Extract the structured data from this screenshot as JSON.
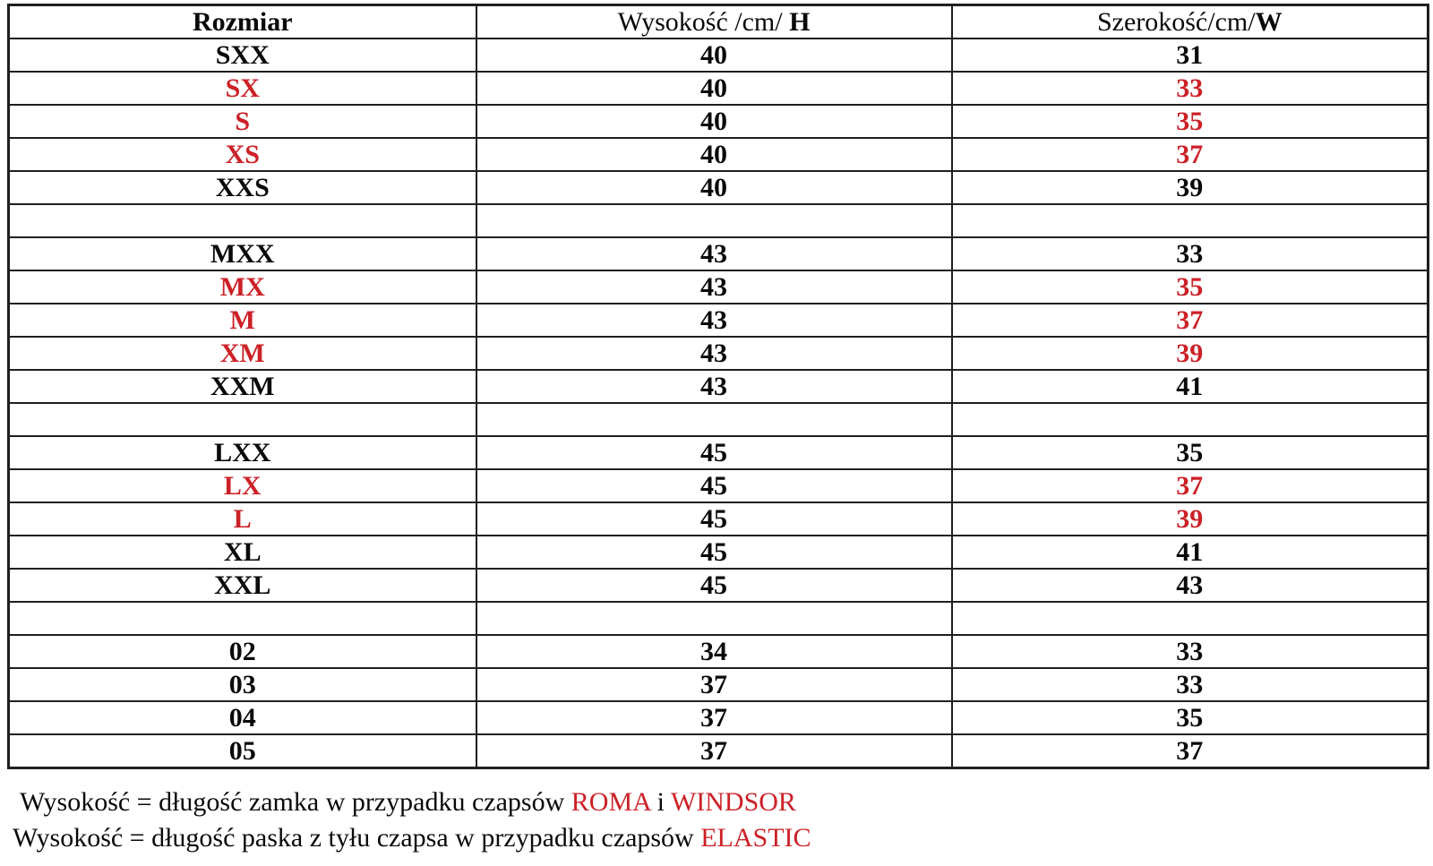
{
  "colors": {
    "accent_red": "#cc2127",
    "text": "#0a0a0a",
    "border": "#1f1f1f"
  },
  "table": {
    "columns": [
      {
        "regular": "",
        "bold": "Rozmiar"
      },
      {
        "regular": "Wysokość /cm/ ",
        "bold": "H"
      },
      {
        "regular": "Szerokość/cm/",
        "bold": "W"
      }
    ],
    "rows": [
      {
        "size": "SXX",
        "height": "40",
        "width": "31",
        "red": false,
        "spacer": false
      },
      {
        "size": "SX",
        "height": "40",
        "width": "33",
        "red": true,
        "spacer": false
      },
      {
        "size": "S",
        "height": "40",
        "width": "35",
        "red": true,
        "spacer": false
      },
      {
        "size": "XS",
        "height": "40",
        "width": "37",
        "red": true,
        "spacer": false
      },
      {
        "size": "XXS",
        "height": "40",
        "width": "39",
        "red": false,
        "spacer": false
      },
      {
        "size": "",
        "height": "",
        "width": "",
        "red": false,
        "spacer": true
      },
      {
        "size": "MXX",
        "height": "43",
        "width": "33",
        "red": false,
        "spacer": false
      },
      {
        "size": "MX",
        "height": "43",
        "width": "35",
        "red": true,
        "spacer": false
      },
      {
        "size": "M",
        "height": "43",
        "width": "37",
        "red": true,
        "spacer": false
      },
      {
        "size": "XM",
        "height": "43",
        "width": "39",
        "red": true,
        "spacer": false
      },
      {
        "size": "XXM",
        "height": "43",
        "width": "41",
        "red": false,
        "spacer": false
      },
      {
        "size": "",
        "height": "",
        "width": "",
        "red": false,
        "spacer": true
      },
      {
        "size": "LXX",
        "height": "45",
        "width": "35",
        "red": false,
        "spacer": false
      },
      {
        "size": "LX",
        "height": "45",
        "width": "37",
        "red": true,
        "spacer": false
      },
      {
        "size": "L",
        "height": "45",
        "width": "39",
        "red": true,
        "spacer": false
      },
      {
        "size": "XL",
        "height": "45",
        "width": "41",
        "red": false,
        "spacer": false
      },
      {
        "size": "XXL",
        "height": "45",
        "width": "43",
        "red": false,
        "spacer": false
      },
      {
        "size": "",
        "height": "",
        "width": "",
        "red": false,
        "spacer": true
      },
      {
        "size": "02",
        "height": "34",
        "width": "33",
        "red": false,
        "spacer": false
      },
      {
        "size": "03",
        "height": "37",
        "width": "33",
        "red": false,
        "spacer": false
      },
      {
        "size": "04",
        "height": "37",
        "width": "35",
        "red": false,
        "spacer": false
      },
      {
        "size": "05",
        "height": "37",
        "width": "37",
        "red": false,
        "spacer": false
      }
    ]
  },
  "footnotes": [
    {
      "parts": [
        {
          "text": "Wysokość = długość zamka w przypadku czapsów ",
          "red": false
        },
        {
          "text": "ROMA",
          "red": true
        },
        {
          "text": " i ",
          "red": false
        },
        {
          "text": "WINDSOR",
          "red": true
        }
      ]
    },
    {
      "parts": [
        {
          "text": "Wysokość = długość paska z tyłu czapsa w przypadku czapsów ",
          "red": false
        },
        {
          "text": "ELASTIC",
          "red": true
        }
      ]
    }
  ]
}
